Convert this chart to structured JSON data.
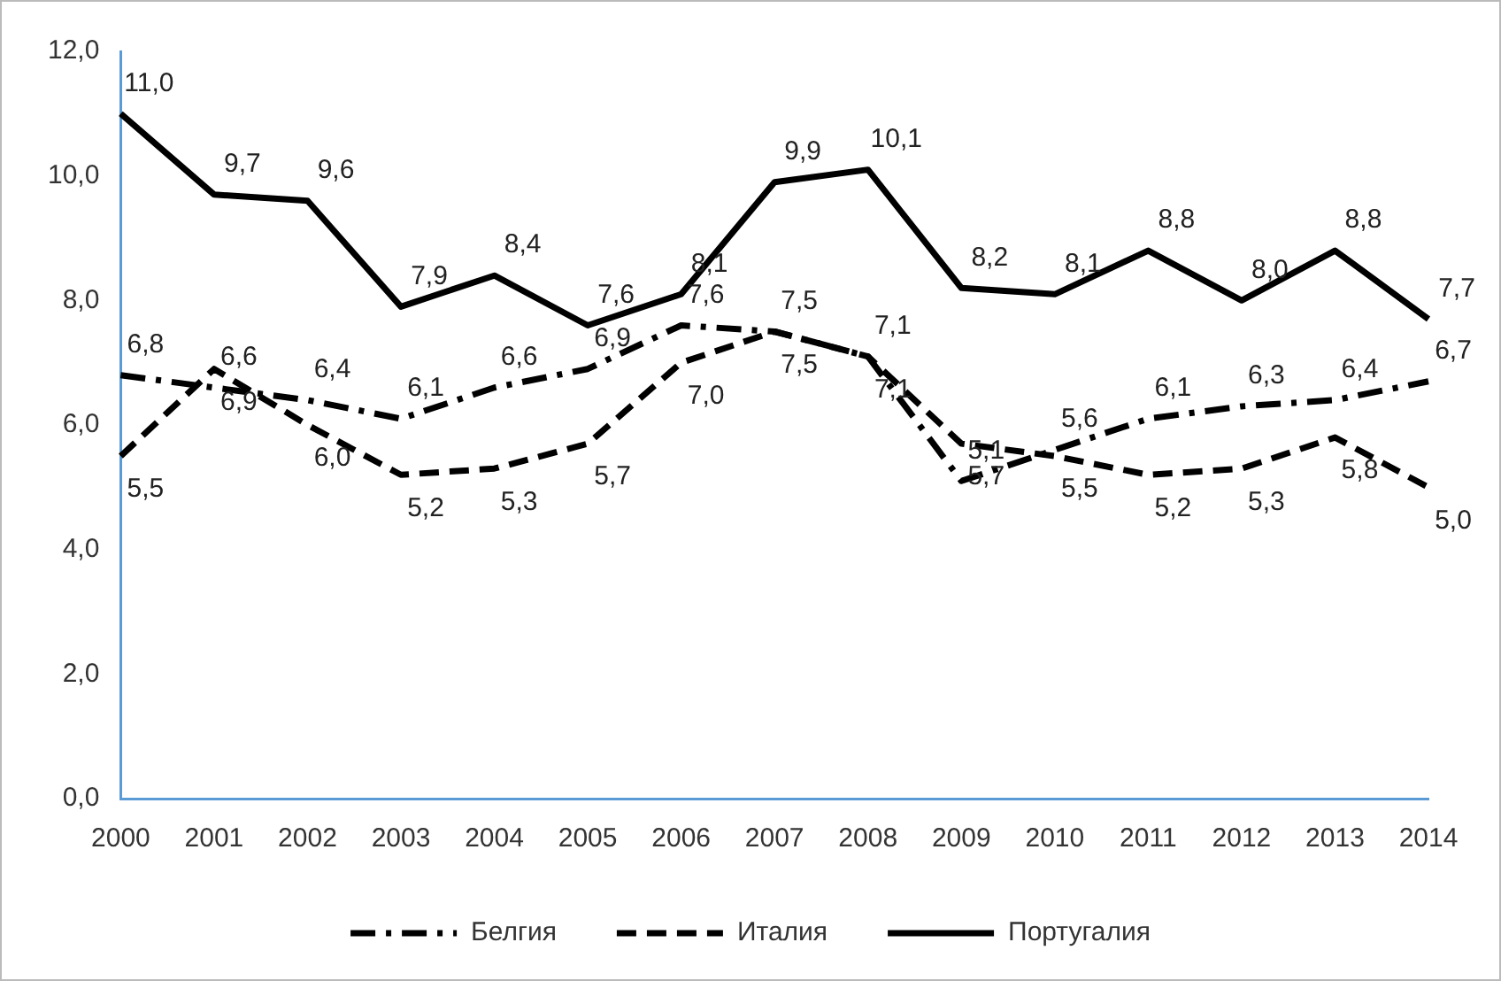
{
  "chart_data": {
    "type": "line",
    "categories": [
      "2000",
      "2001",
      "2002",
      "2003",
      "2004",
      "2005",
      "2006",
      "2007",
      "2008",
      "2009",
      "2010",
      "2011",
      "2012",
      "2013",
      "2014"
    ],
    "series": [
      {
        "name": "Белгия",
        "color": "#000000",
        "line_style": "dashdot",
        "values": [
          6.8,
          6.6,
          6.4,
          6.1,
          6.6,
          6.9,
          7.6,
          7.5,
          7.1,
          5.1,
          5.6,
          6.1,
          6.3,
          6.4,
          6.7
        ],
        "value_labels": [
          "6,8",
          "6,6",
          "6,4",
          "6,1",
          "6,6",
          "6,9",
          "7,6",
          "7,5",
          "7,1",
          "5,1",
          "5,6",
          "6,1",
          "6,3",
          "6,4",
          "6,7"
        ]
      },
      {
        "name": "Италия",
        "color": "#000000",
        "line_style": "dashed",
        "values": [
          5.5,
          6.9,
          6.0,
          5.2,
          5.3,
          5.7,
          7.0,
          7.5,
          7.1,
          5.7,
          5.5,
          5.2,
          5.3,
          5.8,
          5.0
        ],
        "value_labels": [
          "5,5",
          "6,9",
          "6,0",
          "5,2",
          "5,3",
          "5,7",
          "7,0",
          "7,5",
          "7,1",
          "5,7",
          "5,5",
          "5,2",
          "5,3",
          "5,8",
          "5,0"
        ]
      },
      {
        "name": "Португалия",
        "color": "#000000",
        "line_style": "solid",
        "values": [
          11.0,
          9.7,
          9.6,
          7.9,
          8.4,
          7.6,
          8.1,
          9.9,
          10.1,
          8.2,
          8.1,
          8.8,
          8.0,
          8.8,
          7.7
        ],
        "value_labels": [
          "11,0",
          "9,7",
          "9,6",
          "7,9",
          "8,4",
          "7,6",
          "8,1",
          "9,9",
          "10,1",
          "8,2",
          "8,1",
          "8,8",
          "8,0",
          "8,8",
          "7,7"
        ]
      }
    ],
    "ylim": [
      0,
      12
    ],
    "yticks": [
      {
        "value": 0,
        "label": "0,0"
      },
      {
        "value": 2,
        "label": "2,0"
      },
      {
        "value": 4,
        "label": "4,0"
      },
      {
        "value": 6,
        "label": "6,0"
      },
      {
        "value": 8,
        "label": "8,0"
      },
      {
        "value": 10,
        "label": "10,0"
      },
      {
        "value": 12,
        "label": "12,0"
      }
    ],
    "grid": false,
    "legend": "bottom",
    "marker": "none"
  }
}
